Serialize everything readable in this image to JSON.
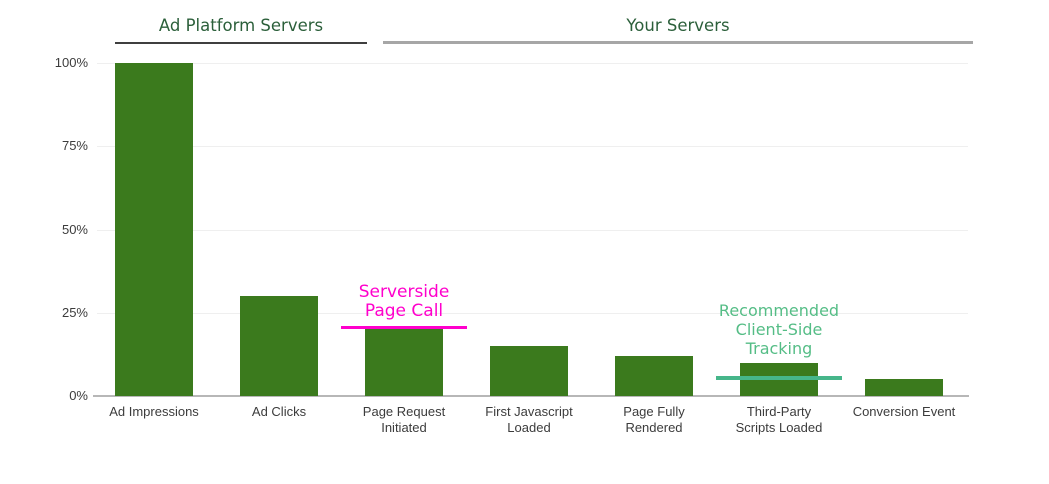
{
  "chart_data": {
    "type": "bar",
    "title": "",
    "xlabel": "",
    "ylabel": "",
    "unit": "%",
    "categories": [
      [
        "Ad Impressions"
      ],
      [
        "Ad Clicks"
      ],
      [
        "Page Request",
        "Initiated"
      ],
      [
        "First Javascript",
        "Loaded"
      ],
      [
        "Page Fully",
        "Rendered"
      ],
      [
        "Third-Party",
        "Scripts Loaded"
      ],
      [
        "Conversion Event"
      ]
    ],
    "values": [
      100,
      30,
      20,
      15,
      12,
      10,
      5
    ],
    "bar_color": "#3b7a1d",
    "ylim": [
      0,
      100
    ],
    "grid": true,
    "yticks": [
      {
        "value": 0,
        "label": "0%"
      },
      {
        "value": 25,
        "label": "25%"
      },
      {
        "value": 50,
        "label": "50%"
      },
      {
        "value": 75,
        "label": "75%"
      },
      {
        "value": 100,
        "label": "100%"
      }
    ],
    "sections": [
      {
        "label": "Ad Platform Servers",
        "covers": [
          "Ad Impressions",
          "Ad Clicks"
        ],
        "text_color": "#2b5f3a",
        "underline_color": "#3f3f3f"
      },
      {
        "label": "Your Servers",
        "covers": [
          "Page Request Initiated",
          "First Javascript Loaded",
          "Page Fully Rendered",
          "Third-Party Scripts Loaded",
          "Conversion Event"
        ],
        "text_color": "#2b5f3a",
        "underline_color": "#a6a6a6"
      }
    ],
    "annotations": [
      {
        "lines": [
          "Serverside",
          "Page Call"
        ],
        "text_color": "#ff00cc",
        "line_color": "#ff00cc",
        "level": 20.5,
        "anchor_category_index": 2
      },
      {
        "lines": [
          "Recommended",
          "Client-Side",
          "Tracking"
        ],
        "text_color": "#55bd86",
        "line_color": "#46b68a",
        "level": 5.5,
        "anchor_category_index": 5
      }
    ]
  },
  "style_colors": {
    "gridline": "#efefef",
    "axis_line": "#b7b7b7",
    "tick_label": "#3c3c3c"
  }
}
